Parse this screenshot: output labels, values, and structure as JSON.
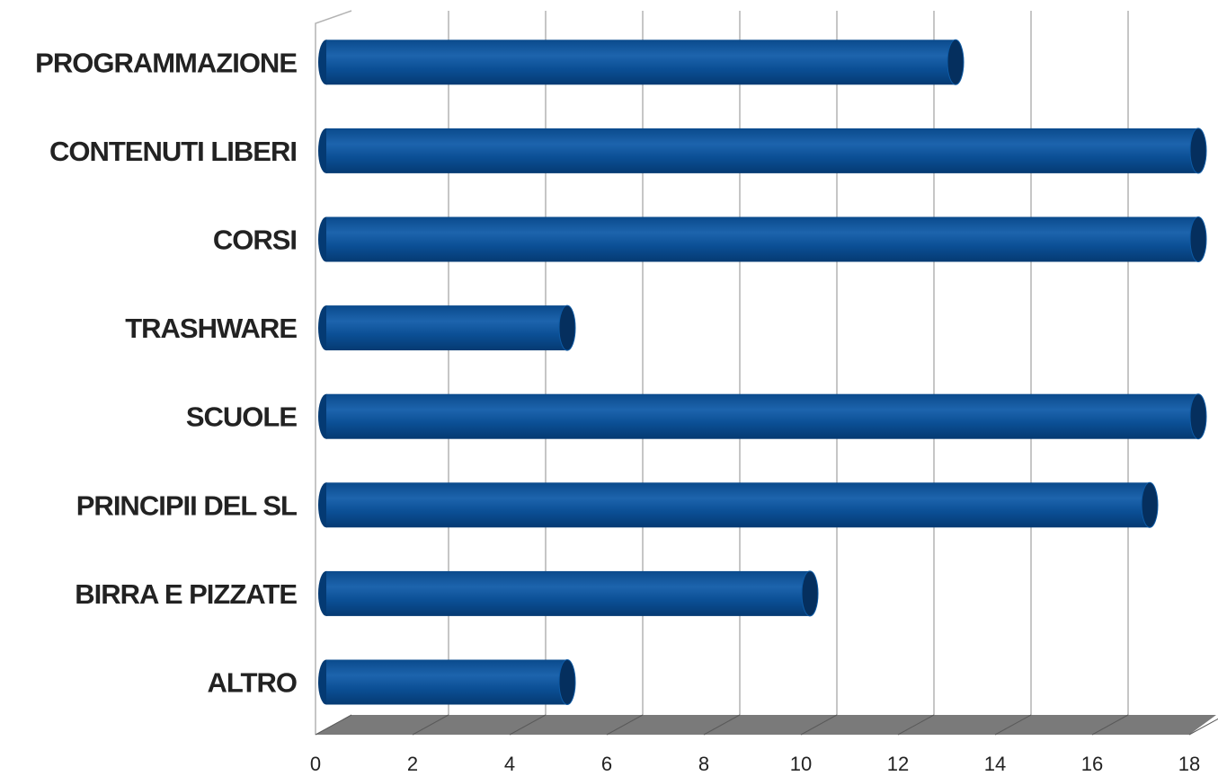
{
  "chart_data": {
    "type": "bar",
    "orientation": "horizontal",
    "style": "3d-cylinder",
    "categories": [
      "PROGRAMMAZIONE",
      "CONTENUTI LIBERI",
      "CORSI",
      "TRASHWARE",
      "SCUOLE",
      "PRINCIPII DEL SL",
      "BIRRA E PIZZATE",
      "ALTRO"
    ],
    "values": [
      13,
      18,
      18,
      5,
      18,
      17,
      10,
      5
    ],
    "xlim": [
      0,
      18
    ],
    "xticks": [
      "0",
      "2",
      "4",
      "6",
      "8",
      "10",
      "12",
      "14",
      "16",
      "18"
    ],
    "grid": true,
    "title": "",
    "xlabel": "",
    "ylabel": "",
    "colors": {
      "bar_body": "#0a4d92",
      "bar_highlight": "#1f66b0",
      "bar_shadow": "#043a73",
      "bar_cap": "#052f5e",
      "grid": "#b3b3b3",
      "floor": "#7a7a7a",
      "wall": "#ffffff"
    }
  }
}
